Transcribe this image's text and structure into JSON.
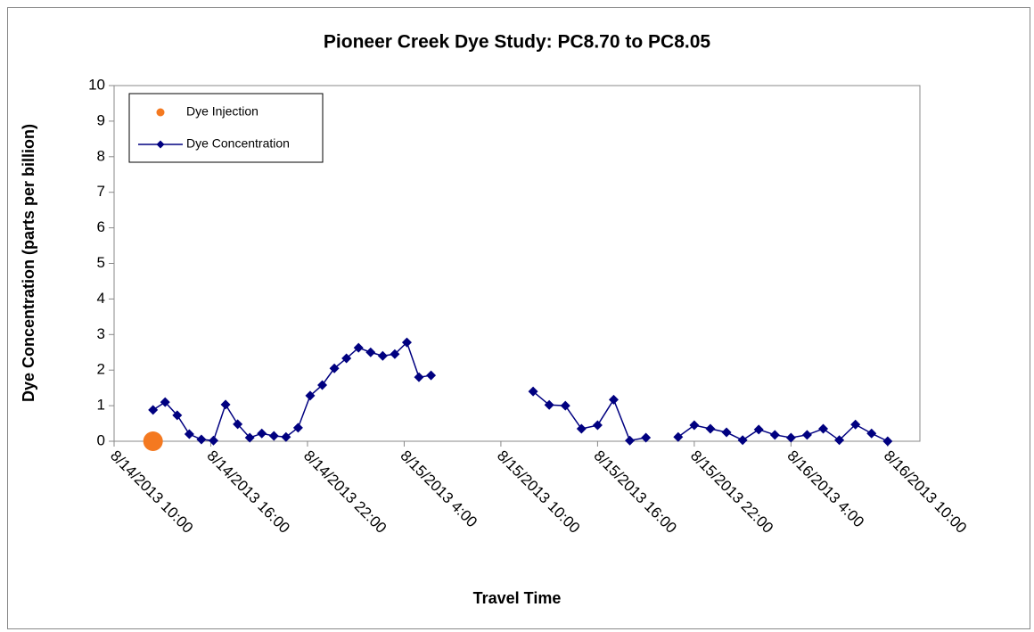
{
  "chart_data": {
    "type": "line",
    "title": "Pioneer Creek Dye Study: PC8.70 to PC8.05",
    "x_label": "Travel Time",
    "y_label": "Dye Concentration (parts per billion)",
    "xlim": [
      "8/14/2013 10:00",
      "8/16/2013 12:00"
    ],
    "xticks": [
      "8/14/2013 10:00",
      "8/14/2013 16:00",
      "8/14/2013 22:00",
      "8/15/2013 4:00",
      "8/15/2013 10:00",
      "8/15/2013 16:00",
      "8/15/2013 22:00",
      "8/16/2013 4:00",
      "8/16/2013 10:00"
    ],
    "ylim": [
      0,
      10
    ],
    "yticks": [
      0,
      1,
      2,
      3,
      4,
      5,
      6,
      7,
      8,
      9,
      10
    ],
    "grid": false,
    "legend": "upper left",
    "series": [
      {
        "name": "Dye Injection",
        "color": "#f47920",
        "marker": "circle",
        "line": false,
        "x": [
          "8/14/2013 12:25"
        ],
        "values": [
          0
        ]
      },
      {
        "name": "Dye Concentration",
        "color": "#000080",
        "marker": "diamond",
        "line": true,
        "x": [
          "8/14/2013 12:25",
          "8/14/2013 13:10",
          "8/14/2013 13:55",
          "8/14/2013 14:40",
          "8/14/2013 15:25",
          "8/14/2013 16:10",
          "8/14/2013 16:55",
          "8/14/2013 17:40",
          "8/14/2013 18:25",
          "8/14/2013 19:10",
          "8/14/2013 19:55",
          "8/14/2013 20:40",
          "8/14/2013 21:25",
          "8/14/2013 22:10",
          "8/14/2013 22:55",
          "8/14/2013 23:40",
          "8/15/2013 0:25",
          "8/15/2013 1:10",
          "8/15/2013 1:55",
          "8/15/2013 2:40",
          "8/15/2013 3:25",
          "8/15/2013 4:10",
          "8/15/2013 4:55",
          "8/15/2013 5:40",
          "8/15/2013 9:00",
          "8/15/2013 12:00",
          "8/15/2013 13:00",
          "8/15/2013 14:00",
          "8/15/2013 15:00",
          "8/15/2013 16:00",
          "8/15/2013 17:00",
          "8/15/2013 18:00",
          "8/15/2013 19:00",
          "8/15/2013 20:00",
          "8/15/2013 21:00",
          "8/15/2013 22:00",
          "8/15/2013 23:00",
          "8/16/2013 0:00",
          "8/16/2013 1:00",
          "8/16/2013 2:00",
          "8/16/2013 3:00",
          "8/16/2013 4:00",
          "8/16/2013 5:00",
          "8/16/2013 6:00",
          "8/16/2013 7:00",
          "8/16/2013 8:00",
          "8/16/2013 9:00",
          "8/16/2013 10:00"
        ],
        "values": [
          0.88,
          1.1,
          0.73,
          0.2,
          0.05,
          0.02,
          1.03,
          0.48,
          0.1,
          0.22,
          0.15,
          0.12,
          0.38,
          1.28,
          1.58,
          2.05,
          2.33,
          2.63,
          2.5,
          2.4,
          2.45,
          2.78,
          1.8,
          1.85,
          null,
          1.4,
          1.02,
          1.0,
          0.35,
          0.45,
          1.17,
          0.02,
          0.1,
          null,
          0.12,
          0.45,
          0.35,
          0.25,
          0.03,
          0.33,
          0.18,
          0.1,
          0.18,
          0.35,
          0.03,
          0.47,
          0.22,
          0.0
        ]
      }
    ]
  }
}
